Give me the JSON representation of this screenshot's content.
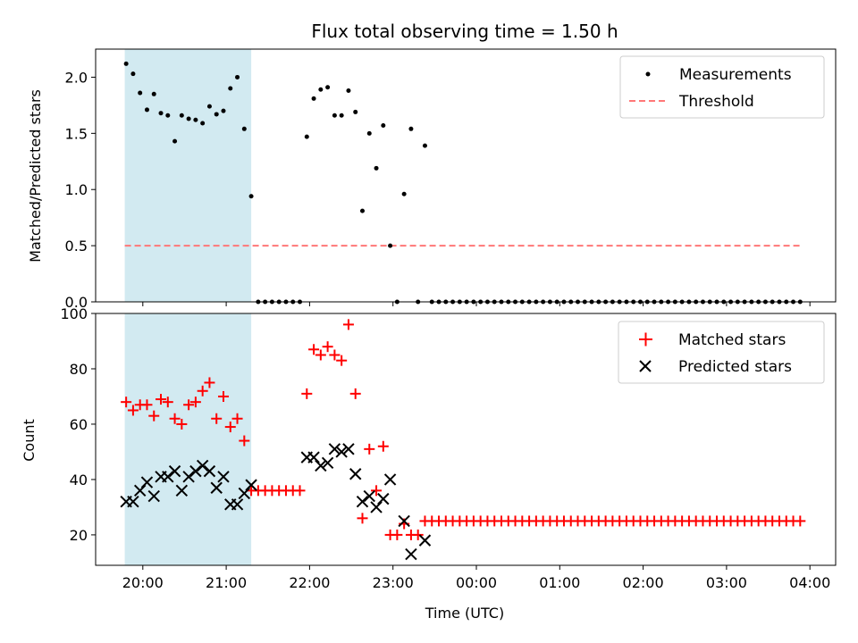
{
  "title": "Flux total observing time = 1.50 h",
  "xlabel": "Time (UTC)",
  "x_ticks": [
    "20:00",
    "21:00",
    "22:00",
    "23:00",
    "00:00",
    "01:00",
    "02:00",
    "03:00",
    "04:00"
  ],
  "colors": {
    "measure": "#000000",
    "threshold": "#ff7777",
    "matched": "#ff0000",
    "predicted": "#000000",
    "shade": "#add8e6"
  },
  "chart_data": [
    {
      "type": "scatter",
      "ylabel": "Matched/Predicted stars",
      "xlim": [
        "19:29",
        "23:59+04:09"
      ],
      "ylim": [
        0,
        2.25
      ],
      "y_ticks": [
        "0.0",
        "0.5",
        "1.0",
        "1.5",
        "2.0"
      ],
      "legend": "top-right",
      "shaded_interval": [
        "19:47",
        "21:18"
      ],
      "threshold": {
        "name": "Threshold",
        "value": 0.5,
        "x_range": [
          "19:47",
          "03:54"
        ]
      },
      "series": [
        {
          "name": "Measurements",
          "x": [
            "19:48",
            "19:53",
            "19:58",
            "20:03",
            "20:08",
            "20:13",
            "20:18",
            "20:23",
            "20:28",
            "20:33",
            "20:38",
            "20:43",
            "20:48",
            "20:53",
            "20:58",
            "21:03",
            "21:08",
            "21:13",
            "21:18",
            "21:23",
            "21:28",
            "21:33",
            "21:38",
            "21:43",
            "21:48",
            "21:53",
            "21:58",
            "22:03",
            "22:08",
            "22:13",
            "22:18",
            "22:23",
            "22:28",
            "22:33",
            "22:38",
            "22:43",
            "22:48",
            "22:53",
            "22:58",
            "23:03",
            "23:08",
            "23:13",
            "23:18",
            "23:23",
            "23:28",
            "23:33",
            "23:38",
            "23:43",
            "23:48",
            "23:53",
            "23:58",
            "00:03",
            "00:08",
            "00:13",
            "00:18",
            "00:23",
            "00:28",
            "00:33",
            "00:38",
            "00:43",
            "00:48",
            "00:53",
            "00:58",
            "01:03",
            "01:08",
            "01:13",
            "01:18",
            "01:23",
            "01:28",
            "01:33",
            "01:38",
            "01:43",
            "01:48",
            "01:53",
            "01:58",
            "02:03",
            "02:08",
            "02:13",
            "02:18",
            "02:23",
            "02:28",
            "02:33",
            "02:38",
            "02:43",
            "02:48",
            "02:53",
            "02:58",
            "03:03",
            "03:08",
            "03:13",
            "03:18",
            "03:23",
            "03:28",
            "03:33",
            "03:38",
            "03:43",
            "03:48",
            "03:53"
          ],
          "y": [
            2.12,
            2.03,
            1.86,
            1.71,
            1.85,
            1.68,
            1.66,
            1.43,
            1.66,
            1.63,
            1.62,
            1.59,
            1.74,
            1.67,
            1.7,
            1.9,
            2.0,
            1.54,
            0.94,
            0,
            0,
            0,
            0,
            0,
            0,
            0,
            1.47,
            1.81,
            1.89,
            1.91,
            1.66,
            1.66,
            1.88,
            1.69,
            0.81,
            1.5,
            1.19,
            1.57,
            0.5,
            0,
            0.96,
            1.54,
            0,
            1.39,
            0,
            0,
            0,
            0,
            0,
            0,
            0,
            0,
            0,
            0,
            0,
            0,
            0,
            0,
            0,
            0,
            0,
            0,
            0,
            0,
            0,
            0,
            0,
            0,
            0,
            0,
            0,
            0,
            0,
            0,
            0,
            0,
            0,
            0,
            0,
            0,
            0,
            0,
            0,
            0,
            0,
            0,
            0,
            0,
            0,
            0,
            0,
            0,
            0,
            0,
            0,
            0,
            0,
            0
          ]
        }
      ]
    },
    {
      "type": "scatter",
      "ylabel": "Count",
      "ylim": [
        9,
        100
      ],
      "y_ticks": [
        "20",
        "40",
        "60",
        "80",
        "100"
      ],
      "legend": "top-right",
      "shaded_interval": [
        "19:47",
        "21:18"
      ],
      "series": [
        {
          "name": "Matched stars",
          "marker": "+",
          "x": [
            "19:48",
            "19:53",
            "19:58",
            "20:03",
            "20:08",
            "20:13",
            "20:18",
            "20:23",
            "20:28",
            "20:33",
            "20:38",
            "20:43",
            "20:48",
            "20:53",
            "20:58",
            "21:03",
            "21:08",
            "21:13",
            "21:18",
            "21:23",
            "21:28",
            "21:33",
            "21:38",
            "21:43",
            "21:48",
            "21:53",
            "21:58",
            "22:03",
            "22:08",
            "22:13",
            "22:18",
            "22:23",
            "22:28",
            "22:33",
            "22:38",
            "22:43",
            "22:48",
            "22:53",
            "22:58",
            "23:03",
            "23:08",
            "23:13",
            "23:18",
            "23:23",
            "23:28",
            "23:33",
            "23:38",
            "23:43",
            "23:48",
            "23:53",
            "23:58",
            "00:03",
            "00:08",
            "00:13",
            "00:18",
            "00:23",
            "00:28",
            "00:33",
            "00:38",
            "00:43",
            "00:48",
            "00:53",
            "00:58",
            "01:03",
            "01:08",
            "01:13",
            "01:18",
            "01:23",
            "01:28",
            "01:33",
            "01:38",
            "01:43",
            "01:48",
            "01:53",
            "01:58",
            "02:03",
            "02:08",
            "02:13",
            "02:18",
            "02:23",
            "02:28",
            "02:33",
            "02:38",
            "02:43",
            "02:48",
            "02:53",
            "02:58",
            "03:03",
            "03:08",
            "03:13",
            "03:18",
            "03:23",
            "03:28",
            "03:33",
            "03:38",
            "03:43",
            "03:48",
            "03:53"
          ],
          "y": [
            68,
            65,
            67,
            67,
            63,
            69,
            68,
            62,
            60,
            67,
            68,
            72,
            75,
            62,
            70,
            59,
            62,
            54,
            36,
            36,
            36,
            36,
            36,
            36,
            36,
            36,
            71,
            87,
            85,
            88,
            85,
            83,
            96,
            71,
            26,
            51,
            36,
            52,
            20,
            20,
            24,
            20,
            20,
            25,
            25,
            25,
            25,
            25,
            25,
            25,
            25,
            25,
            25,
            25,
            25,
            25,
            25,
            25,
            25,
            25,
            25,
            25,
            25,
            25,
            25,
            25,
            25,
            25,
            25,
            25,
            25,
            25,
            25,
            25,
            25,
            25,
            25,
            25,
            25,
            25,
            25,
            25,
            25,
            25,
            25,
            25,
            25,
            25,
            25,
            25,
            25,
            25,
            25,
            25,
            25,
            25,
            25,
            25
          ]
        },
        {
          "name": "Predicted stars",
          "marker": "x",
          "x": [
            "19:48",
            "19:53",
            "19:58",
            "20:03",
            "20:08",
            "20:13",
            "20:18",
            "20:23",
            "20:28",
            "20:33",
            "20:38",
            "20:43",
            "20:48",
            "20:53",
            "20:58",
            "21:03",
            "21:08",
            "21:13",
            "21:18",
            "21:58",
            "22:03",
            "22:08",
            "22:13",
            "22:18",
            "22:23",
            "22:28",
            "22:33",
            "22:38",
            "22:43",
            "22:48",
            "22:53",
            "22:58",
            "23:08",
            "23:13",
            "23:23"
          ],
          "y": [
            32,
            32,
            36,
            39,
            34,
            41,
            41,
            43,
            36,
            41,
            43,
            45,
            43,
            37,
            41,
            31,
            31,
            35,
            38,
            48,
            48,
            45,
            46,
            51,
            50,
            51,
            42,
            32,
            34,
            30,
            33,
            40,
            25,
            13,
            18
          ]
        }
      ]
    }
  ]
}
